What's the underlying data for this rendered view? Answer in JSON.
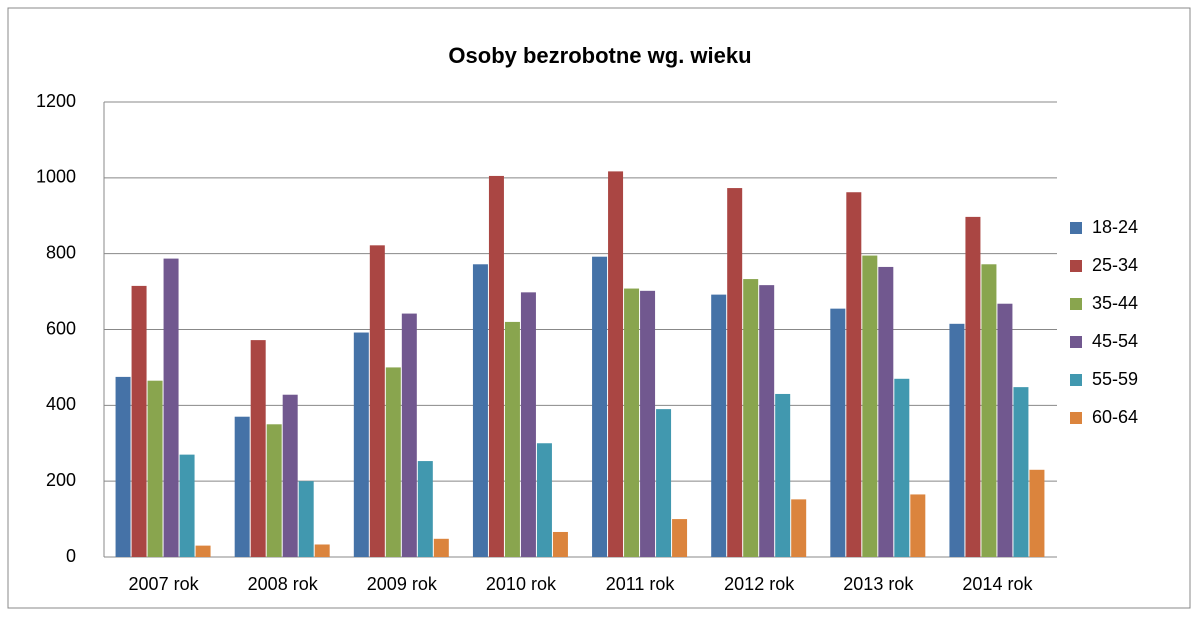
{
  "chart_data": {
    "type": "bar",
    "title": "Osoby bezrobotne wg. wieku",
    "categories": [
      "2007 rok",
      "2008 rok",
      "2009 rok",
      "2010 rok",
      "2011 rok",
      "2012 rok",
      "2013 rok",
      "2014 rok"
    ],
    "series": [
      {
        "name": "18-24",
        "color": "#4572a7",
        "values": [
          475,
          370,
          592,
          772,
          792,
          692,
          655,
          615
        ]
      },
      {
        "name": "25-34",
        "color": "#aa4643",
        "values": [
          715,
          572,
          822,
          1005,
          1017,
          973,
          962,
          897
        ]
      },
      {
        "name": "35-44",
        "color": "#89a54e",
        "values": [
          465,
          350,
          500,
          620,
          708,
          733,
          795,
          772
        ]
      },
      {
        "name": "45-54",
        "color": "#71588f",
        "values": [
          787,
          428,
          642,
          698,
          702,
          717,
          765,
          668
        ]
      },
      {
        "name": "55-59",
        "color": "#4198af",
        "values": [
          270,
          200,
          253,
          300,
          390,
          430,
          470,
          448
        ]
      },
      {
        "name": "60-64",
        "color": "#db843d",
        "values": [
          30,
          33,
          48,
          66,
          100,
          152,
          165,
          230
        ]
      }
    ],
    "ylim": [
      0,
      1200
    ],
    "yticks": [
      0,
      200,
      400,
      600,
      800,
      1000,
      1200
    ],
    "grid": true,
    "legend": "right"
  }
}
